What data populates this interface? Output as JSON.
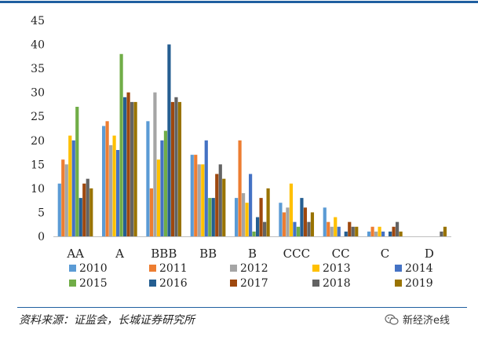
{
  "chart_data": {
    "type": "bar",
    "title": "",
    "xlabel": "",
    "ylabel": "",
    "ylim": [
      0,
      45
    ],
    "yticks": [
      0,
      5,
      10,
      15,
      20,
      25,
      30,
      35,
      40,
      45
    ],
    "grid": false,
    "legend_position": "bottom",
    "categories": [
      "AA",
      "A",
      "BBB",
      "BB",
      "B",
      "CCC",
      "CC",
      "C",
      "D"
    ],
    "series": [
      {
        "name": "2010",
        "color": "#5b9bd5",
        "values": [
          11,
          23,
          24,
          17,
          8,
          7,
          6,
          1,
          0
        ]
      },
      {
        "name": "2011",
        "color": "#ed7d31",
        "values": [
          16,
          24,
          10,
          17,
          20,
          5,
          3,
          2,
          0
        ]
      },
      {
        "name": "2012",
        "color": "#a5a5a5",
        "values": [
          15,
          19,
          30,
          15,
          9,
          6,
          2,
          1,
          0
        ]
      },
      {
        "name": "2013",
        "color": "#ffc000",
        "values": [
          21,
          21,
          16,
          15,
          7,
          11,
          4,
          2,
          0
        ]
      },
      {
        "name": "2014",
        "color": "#4472c4",
        "values": [
          20,
          18,
          20,
          20,
          13,
          3,
          2,
          1,
          0
        ]
      },
      {
        "name": "2015",
        "color": "#70ad47",
        "values": [
          27,
          38,
          22,
          8,
          1,
          2,
          0,
          0,
          0
        ]
      },
      {
        "name": "2016",
        "color": "#255e91",
        "values": [
          8,
          29,
          40,
          8,
          4,
          8,
          1,
          1,
          0
        ]
      },
      {
        "name": "2017",
        "color": "#9e480e",
        "values": [
          11,
          30,
          28,
          13,
          8,
          6,
          3,
          2,
          0
        ]
      },
      {
        "name": "2018",
        "color": "#636363",
        "values": [
          12,
          28,
          29,
          15,
          3,
          3,
          2,
          3,
          1
        ]
      },
      {
        "name": "2019",
        "color": "#997300",
        "values": [
          10,
          28,
          28,
          12,
          10,
          5,
          2,
          1,
          2
        ]
      }
    ]
  },
  "footer": {
    "source": "资料来源：证监会，长城证券研究所",
    "watermark": "新经济e线",
    "watermark_icon": "wechat-icon"
  }
}
